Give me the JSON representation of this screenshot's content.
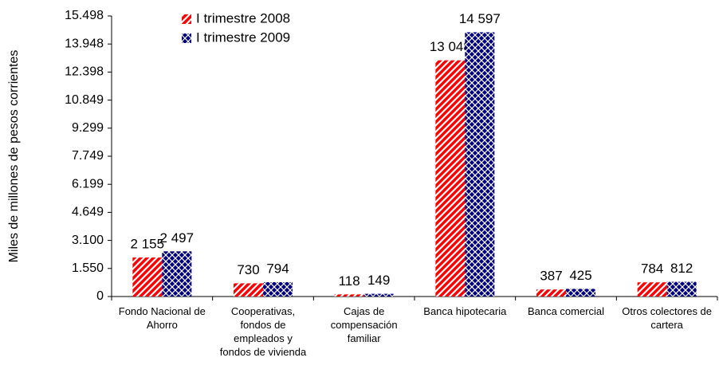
{
  "chart_data": {
    "type": "bar",
    "y_label": "Miles de millones de pesos corrientes",
    "categories": [
      "Fondo Nacional de Ahorro",
      "Cooperativas, fondos de empleados y fondos de vivienda",
      "Cajas de compensación familiar",
      "Banca hipotecaria",
      "Banca comercial",
      "Otros colectores de cartera"
    ],
    "series": [
      {
        "name": "I trimestre 2008",
        "color": "#ff0000",
        "values": [
          2155,
          730,
          118,
          13048,
          387,
          784
        ],
        "value_labels": [
          "2 155",
          "730",
          "118",
          "13 048",
          "387",
          "784"
        ]
      },
      {
        "name": "I trimestre 2009",
        "color": "#000080",
        "values": [
          2497,
          794,
          149,
          14597,
          425,
          812
        ],
        "value_labels": [
          "2 497",
          "794",
          "149",
          "14 597",
          "425",
          "812"
        ]
      }
    ],
    "ylim": [
      0,
      15498
    ],
    "yticks": [
      0,
      {
        "value": 1550,
        "label": "1.550"
      },
      {
        "value": 3100,
        "label": "3.100"
      },
      {
        "value": 4649,
        "label": "4.649"
      },
      {
        "value": 6199,
        "label": "6.199"
      },
      {
        "value": 7749,
        "label": "7.749"
      },
      {
        "value": 9299,
        "label": "9.299"
      },
      {
        "value": 10849,
        "label": "10.849"
      },
      {
        "value": 12398,
        "label": "12.398"
      },
      {
        "value": 13948,
        "label": "13.948"
      },
      {
        "value": 15498,
        "label": "15.498"
      }
    ],
    "grid": false
  }
}
